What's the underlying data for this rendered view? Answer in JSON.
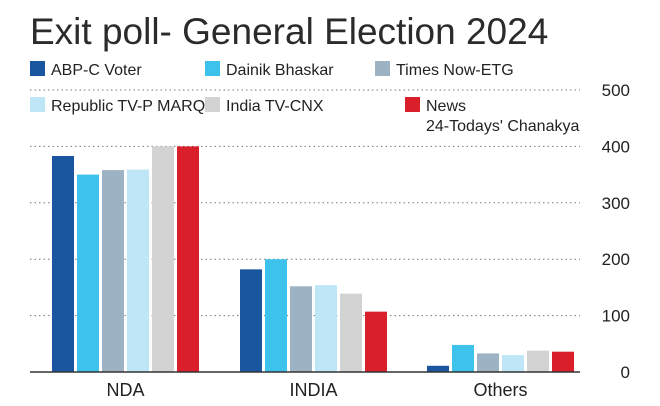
{
  "chart_data": {
    "type": "bar",
    "title": "Exit poll- General Election 2024",
    "xlabel": "",
    "ylabel": "",
    "categories": [
      "NDA",
      "INDIA",
      "Others"
    ],
    "ylim": [
      0,
      500
    ],
    "yticks": [
      "0",
      "100",
      "200",
      "300",
      "400",
      "500"
    ],
    "grid": true,
    "legend": "top",
    "series": [
      {
        "name": "ABP-C Voter",
        "color": "#1a56a0",
        "values": [
          383,
          182,
          11
        ]
      },
      {
        "name": "Dainik Bhaskar",
        "color": "#3dc2ec",
        "values": [
          350,
          200,
          48
        ]
      },
      {
        "name": "Times Now-ETG",
        "color": "#9db3c4",
        "values": [
          358,
          152,
          33
        ]
      },
      {
        "name": "Republic TV-P MARQ",
        "color": "#bfe6f7",
        "values": [
          359,
          154,
          30
        ]
      },
      {
        "name": "India TV-CNX",
        "color": "#d3d3d3",
        "values": [
          400,
          139,
          38
        ]
      },
      {
        "name": "News 24-Todays' Chanakya",
        "color": "#d81f2a",
        "values": [
          400,
          107,
          36
        ]
      }
    ]
  }
}
